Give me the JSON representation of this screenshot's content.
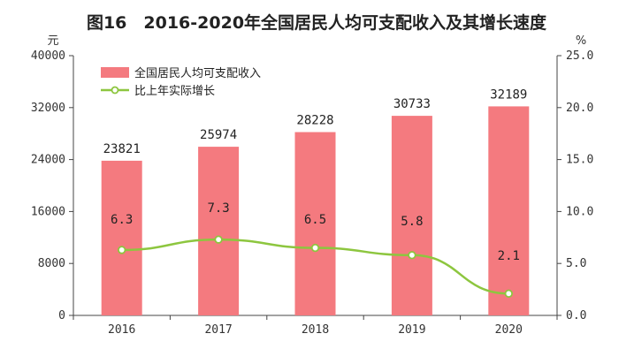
{
  "chart_data": {
    "type": "bar",
    "title": "图16　2016-2020年全国居民人均可支配收入及其增长速度",
    "categories": [
      "2016",
      "2017",
      "2018",
      "2019",
      "2020"
    ],
    "left_axis": {
      "unit": "元",
      "range": [
        0,
        40000
      ],
      "ticks": [
        "0",
        "8000",
        "16000",
        "24000",
        "32000",
        "40000"
      ]
    },
    "right_axis": {
      "unit": "%",
      "range": [
        0,
        25
      ],
      "ticks": [
        "0.0",
        "5.0",
        "10.0",
        "15.0",
        "20.0",
        "25.0"
      ]
    },
    "series": [
      {
        "name": "全国居民人均可支配收入",
        "type": "bar",
        "axis": "left",
        "color": "#f47a7f",
        "values": [
          23821,
          25974,
          28228,
          30733,
          32189
        ],
        "labels": [
          "23821",
          "25974",
          "28228",
          "30733",
          "32189"
        ]
      },
      {
        "name": "比上年实际增长",
        "type": "line",
        "axis": "right",
        "color": "#8dc63f",
        "values": [
          6.3,
          7.3,
          6.5,
          5.8,
          2.1
        ],
        "labels": [
          "6.3",
          "7.3",
          "6.5",
          "5.8",
          "2.1"
        ]
      }
    ],
    "grid": false,
    "legend_position": "top-left"
  }
}
